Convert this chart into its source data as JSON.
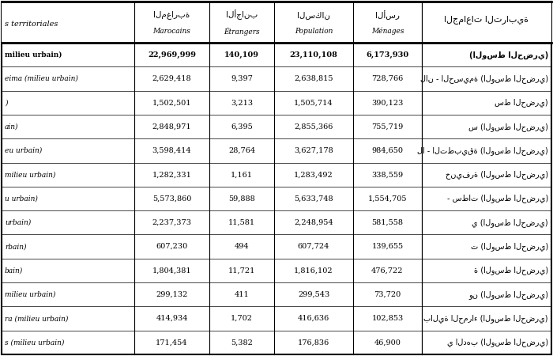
{
  "col_headers_arabic": [
    "المغاربة",
    "الأجانب",
    "السكان",
    "الأسر"
  ],
  "col_headers_french": [
    "Marocains",
    "Étrangers",
    "Population",
    "Ménages"
  ],
  "col_header_left_arabic": "الجماعات الترابية",
  "col_header_left_french": "s territoriales",
  "rows": [
    {
      "left": "milieu urbain)",
      "marocains": "22,969,999",
      "etrangers": "140,109",
      "population": "23,110,108",
      "menages": "6,173,930",
      "arabic": "(الوسط الحضري)",
      "bold": true
    },
    {
      "left": "eima (milieu urbain)",
      "marocains": "2,629,418",
      "etrangers": "9,397",
      "population": "2,638,815",
      "menages": "728,766",
      "arabic": "لان - الحسيمة (الوسط الحضري)",
      "bold": false
    },
    {
      "left": ")",
      "marocains": "1,502,501",
      "etrangers": "3,213",
      "population": "1,505,714",
      "menages": "390,123",
      "arabic": "سط الحضري)",
      "bold": false
    },
    {
      "left": "ain)",
      "marocains": "2,848,971",
      "etrangers": "6,395",
      "population": "2,855,366",
      "menages": "755,719",
      "arabic": "س (الوسط الحضري)",
      "bold": false
    },
    {
      "left": "eu urbain)",
      "marocains": "3,598,414",
      "etrangers": "28,764",
      "population": "3,627,178",
      "menages": "984,650",
      "arabic": "لا - التطبيقة (الوسط الحضري)",
      "bold": false
    },
    {
      "left": "milieu urbain)",
      "marocains": "1,282,331",
      "etrangers": "1,161",
      "population": "1,283,492",
      "menages": "338,559",
      "arabic": "خنيفرة (الوسط الحضري)",
      "bold": false
    },
    {
      "left": "u urbain)",
      "marocains": "5,573,860",
      "etrangers": "59,888",
      "population": "5,633,748",
      "menages": "1,554,705",
      "arabic": "- سطات (الوسط الحضري)",
      "bold": false
    },
    {
      "left": "urbain)",
      "marocains": "2,237,373",
      "etrangers": "11,581",
      "population": "2,248,954",
      "menages": "581,558",
      "arabic": "ي (الوسط الحضري)",
      "bold": false
    },
    {
      "left": "rbain)",
      "marocains": "607,230",
      "etrangers": "494",
      "population": "607,724",
      "menages": "139,655",
      "arabic": "ت (الوسط الحضري)",
      "bold": false
    },
    {
      "left": "bain)",
      "marocains": "1,804,381",
      "etrangers": "11,721",
      "population": "1,816,102",
      "menages": "476,722",
      "arabic": "ة (الوسط الحضري)",
      "bold": false
    },
    {
      "left": "milieu urbain)",
      "marocains": "299,132",
      "etrangers": "411",
      "population": "299,543",
      "menages": "73,720",
      "arabic": "ون (الوسط الحضري)",
      "bold": false
    },
    {
      "left": "ra (milieu urbain)",
      "marocains": "414,934",
      "etrangers": "1,702",
      "population": "416,636",
      "menages": "102,853",
      "arabic": "بالية الحمراء (الوسط الحضري)",
      "bold": false
    },
    {
      "left": "s (milieu urbain)",
      "marocains": "171,454",
      "etrangers": "5,382",
      "population": "176,836",
      "menages": "46,900",
      "arabic": "ي الدهب (الوسط الحضري)",
      "bold": false
    }
  ],
  "background_color": "#ffffff",
  "header_bg": "#ffffff",
  "border_color": "#000000",
  "header_line_color": "#000000",
  "bold_row_color": "#000000",
  "normal_row_color": "#000000"
}
